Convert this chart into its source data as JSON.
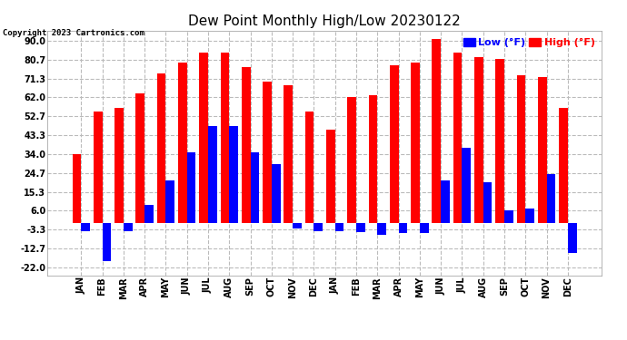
{
  "title": "Dew Point Monthly High/Low 20230122",
  "copyright": "Copyright 2023 Cartronics.com",
  "months": [
    "JAN",
    "FEB",
    "MAR",
    "APR",
    "MAY",
    "JUN",
    "JUL",
    "AUG",
    "SEP",
    "OCT",
    "NOV",
    "DEC",
    "JAN",
    "FEB",
    "MAR",
    "APR",
    "MAY",
    "JUN",
    "JUL",
    "AUG",
    "SEP",
    "OCT",
    "NOV",
    "DEC"
  ],
  "high_values": [
    34.0,
    55.0,
    57.0,
    64.0,
    74.0,
    79.0,
    84.0,
    84.0,
    77.0,
    70.0,
    68.0,
    55.0,
    46.0,
    62.0,
    63.0,
    78.0,
    79.0,
    91.0,
    84.0,
    82.0,
    81.0,
    73.0,
    72.0,
    57.0
  ],
  "low_values": [
    -4.0,
    -19.0,
    -4.0,
    9.0,
    21.0,
    35.0,
    48.0,
    48.0,
    35.0,
    29.0,
    -3.0,
    -4.0,
    -4.0,
    -4.5,
    -6.0,
    -5.0,
    -5.0,
    21.0,
    37.0,
    20.0,
    6.0,
    7.0,
    24.0,
    -15.0
  ],
  "bar_color_high": "#ff0000",
  "bar_color_low": "#0000ff",
  "yticks": [
    -22.0,
    -12.7,
    -3.3,
    6.0,
    15.3,
    24.7,
    34.0,
    43.3,
    52.7,
    62.0,
    71.3,
    80.7,
    90.0
  ],
  "ytick_labels": [
    "-22.0",
    "-12.7",
    "-3.3",
    "6.0",
    "15.3",
    "24.7",
    "34.0",
    "43.3",
    "52.7",
    "62.0",
    "71.3",
    "80.7",
    "90.0"
  ],
  "ylim": [
    -26,
    95
  ],
  "background_color": "#ffffff",
  "grid_color": "#bbbbbb",
  "title_fontsize": 11,
  "tick_fontsize": 7,
  "bar_width": 0.42,
  "legend_low_label": "Low (°F)",
  "legend_high_label": "High (°F)"
}
